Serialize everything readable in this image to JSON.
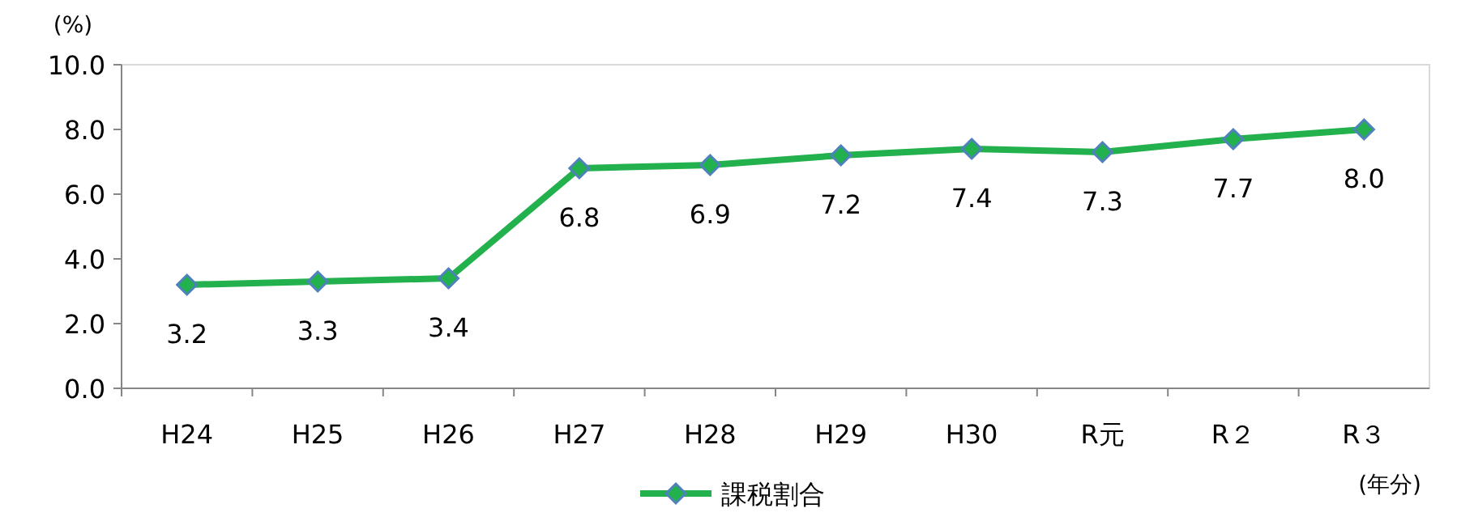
{
  "chart_data": {
    "type": "line",
    "ylabel": "(%)",
    "xlabel": "(年分)",
    "categories": [
      "H24",
      "H25",
      "H26",
      "H27",
      "H28",
      "H29",
      "H30",
      "R元",
      "R２",
      "R３"
    ],
    "series": [
      {
        "name": "課税割合",
        "color": "#22b14c",
        "values": [
          3.2,
          3.3,
          3.4,
          6.8,
          6.9,
          7.2,
          7.4,
          7.3,
          7.7,
          8.0
        ],
        "value_labels": [
          "3.2",
          "3.3",
          "3.4",
          "6.8",
          "6.9",
          "7.2",
          "7.4",
          "7.3",
          "7.7",
          "8.0"
        ]
      }
    ],
    "ylim": [
      0,
      10
    ],
    "yticks": [
      {
        "value": 0,
        "label": "0.0"
      },
      {
        "value": 2,
        "label": "2.0"
      },
      {
        "value": 4,
        "label": "4.0"
      },
      {
        "value": 6,
        "label": "6.0"
      },
      {
        "value": 8,
        "label": "8.0"
      },
      {
        "value": 10,
        "label": "10.0"
      }
    ],
    "legend": "bottom",
    "marker": "diamond",
    "line_style": "solid",
    "grid": false
  }
}
